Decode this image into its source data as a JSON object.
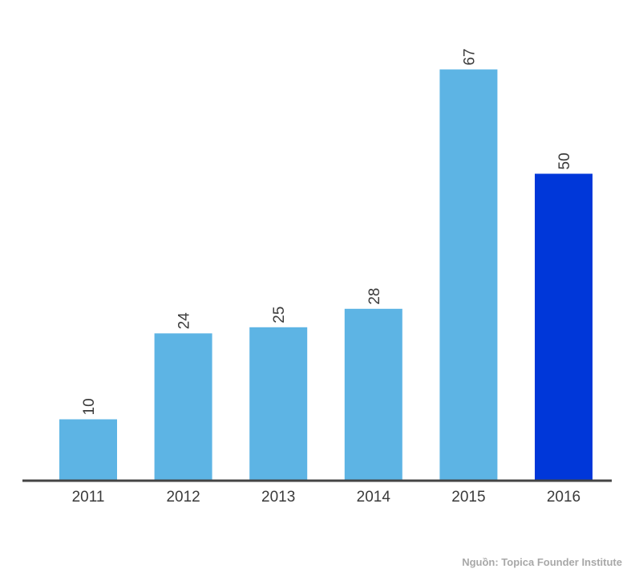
{
  "chart_data": {
    "type": "bar",
    "categories": [
      "2011",
      "2012",
      "2013",
      "2014",
      "2015",
      "2016"
    ],
    "values": [
      10,
      24,
      25,
      28,
      67,
      50
    ],
    "title": "",
    "xlabel": "",
    "ylabel": "",
    "ylim": [
      0,
      77
    ],
    "grid": false,
    "legend": "none",
    "bar_color": "#5db4e4",
    "highlight_color": "#0037d9",
    "highlight_category": "2016",
    "axis_color": "#444444"
  },
  "source_note": "Nguồn: Topica Founder Institute"
}
